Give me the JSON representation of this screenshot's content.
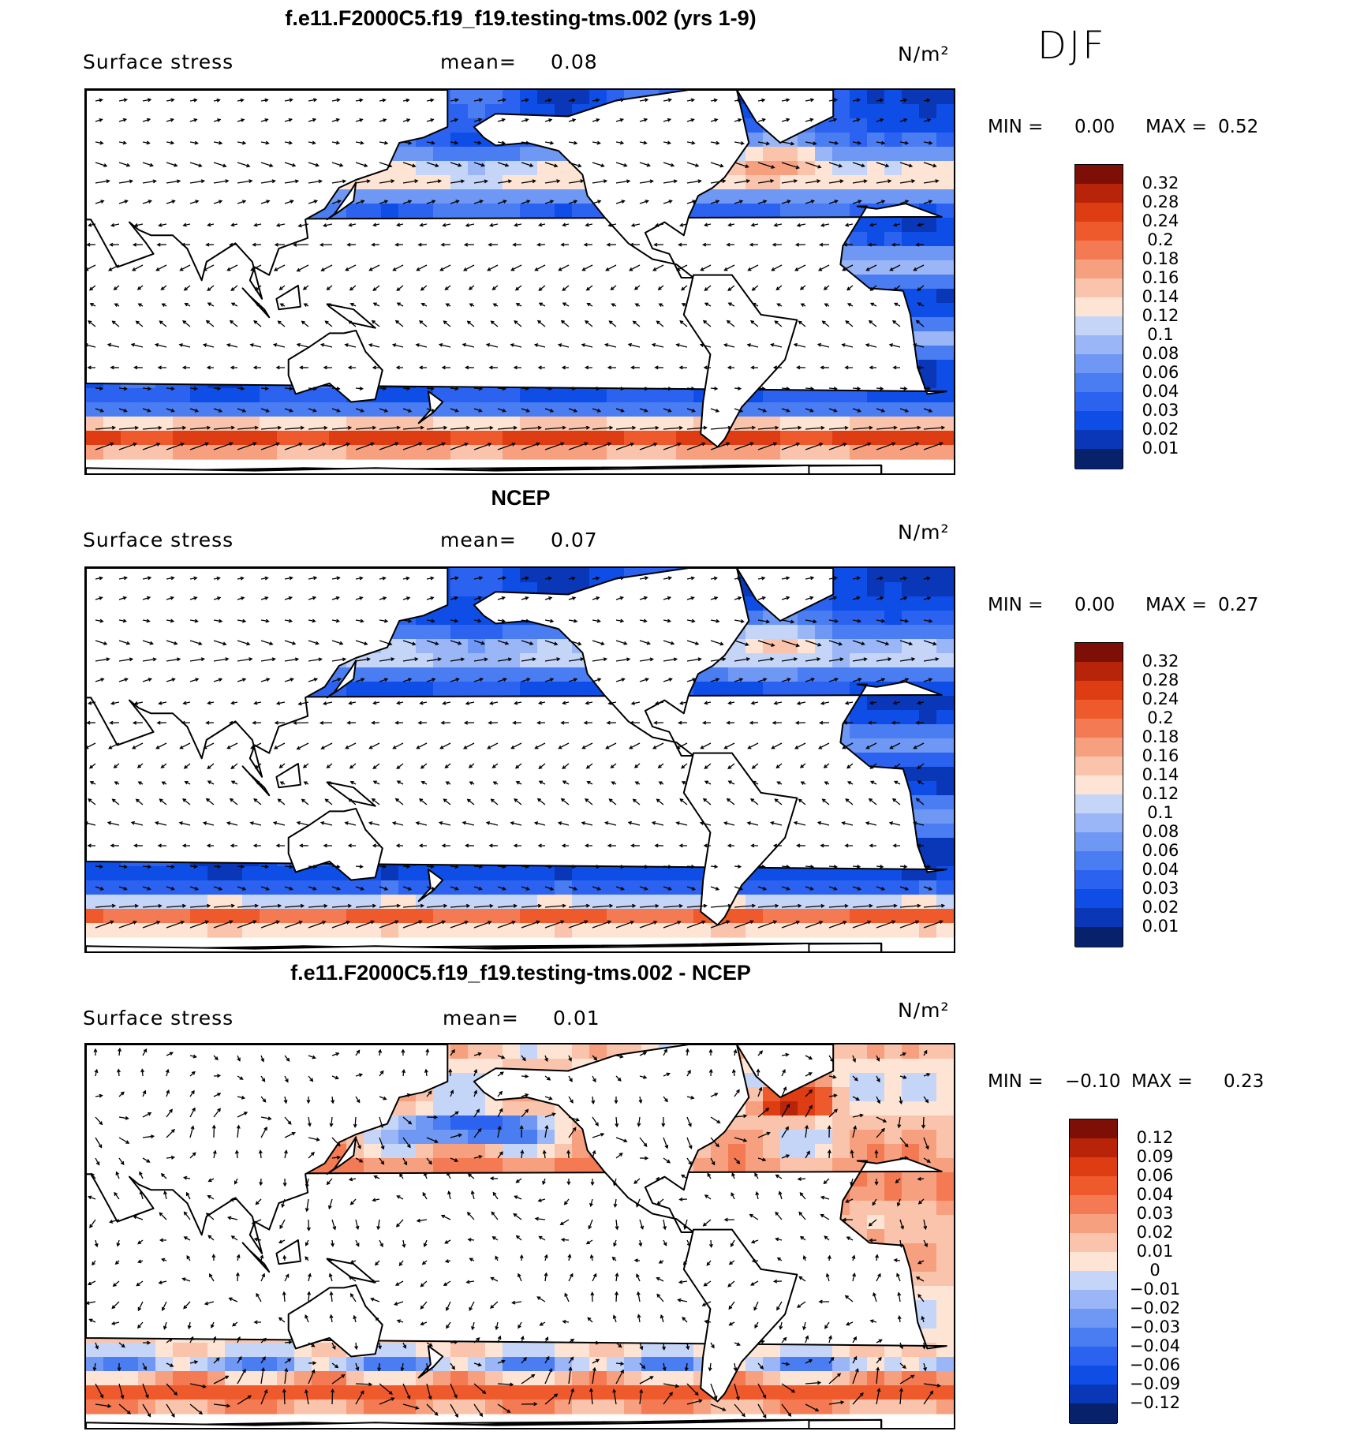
{
  "season": "DJF",
  "colors": {
    "standard": [
      "#08216b",
      "#0a37b8",
      "#0e4ee6",
      "#2b63f0",
      "#4a7cf2",
      "#6f97f4",
      "#9ab6f6",
      "#c5d5f8",
      "#e8eefb",
      "#fde4d4",
      "#f9c4ab",
      "#f6a07f",
      "#f37a53",
      "#ef5a2d",
      "#de3c12",
      "#b8240a",
      "#7e0f06"
    ],
    "difference": [
      "#08216b",
      "#0a37b8",
      "#0e4ee6",
      "#2b63f0",
      "#4a7cf2",
      "#6f97f4",
      "#9ab6f6",
      "#c5d5f8",
      "#e8eefb",
      "#fde4d4",
      "#f9c4ab",
      "#f6a07f",
      "#f37a53",
      "#ef5a2d",
      "#de3c12",
      "#b8240a",
      "#7e0f06"
    ]
  },
  "chart_data": [
    {
      "type": "heatmap",
      "title": "f.e11.F2000C5.f19_f19.testing-tms.002 (yrs 1-9)",
      "variable": "Surface stress",
      "mean_label": "mean=",
      "mean": "0.08",
      "units": "N/m²",
      "min_label": "MIN =",
      "min": "0.00",
      "max_label": "MAX =",
      "max": "0.52",
      "colorbar": [
        "0.32",
        "0.28",
        "0.24",
        "0.2",
        "0.18",
        "0.16",
        "0.14",
        "0.12",
        "0.1",
        "0.08",
        "0.06",
        "0.04",
        "0.03",
        "0.02",
        "0.01"
      ],
      "field_scale": 1.0
    },
    {
      "type": "heatmap",
      "title": "NCEP",
      "variable": "Surface stress",
      "mean_label": "mean=",
      "mean": "0.07",
      "units": "N/m²",
      "min_label": "MIN =",
      "min": "0.00",
      "max_label": "MAX =",
      "max": "0.27",
      "colorbar": [
        "0.32",
        "0.28",
        "0.24",
        "0.2",
        "0.18",
        "0.16",
        "0.14",
        "0.12",
        "0.1",
        "0.08",
        "0.06",
        "0.04",
        "0.03",
        "0.02",
        "0.01"
      ],
      "field_scale": 0.8
    },
    {
      "type": "heatmap",
      "title": "f.e11.F2000C5.f19_f19.testing-tms.002 - NCEP",
      "variable": "Surface stress",
      "mean_label": "mean=",
      "mean": "0.01",
      "units": "N/m²",
      "min_label": "MIN =",
      "min": "−0.10",
      "max_label": "MAX =",
      "max": "0.23",
      "colorbar": [
        "0.12",
        "0.09",
        "0.06",
        "0.04",
        "0.03",
        "0.02",
        "0.01",
        "0",
        "−0.01",
        "−0.02",
        "−0.03",
        "−0.04",
        "−0.06",
        "−0.09",
        "−0.12"
      ],
      "field_scale": 1.0,
      "difference": true
    }
  ]
}
